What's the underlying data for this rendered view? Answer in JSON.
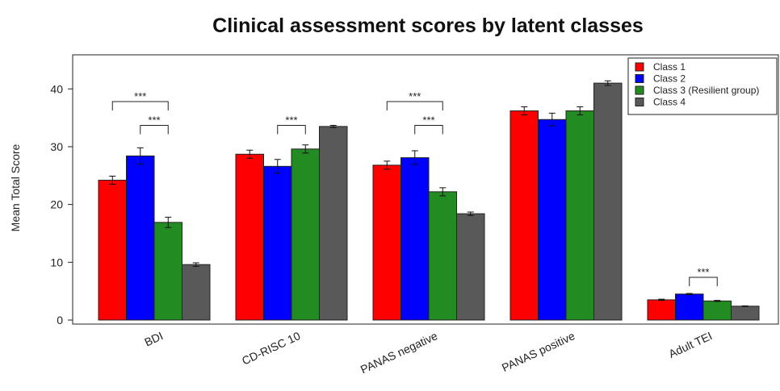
{
  "chart_data": {
    "type": "bar",
    "title": "Clinical assessment scores by latent classes",
    "y_label": "Mean Total Score",
    "categories": [
      "BDI",
      "CD-RISC 10",
      "PANAS negative",
      "PANAS positive",
      "Adult TEI"
    ],
    "series": [
      {
        "name": "Class 1",
        "color": "#ff0000",
        "values": [
          24.2,
          28.7,
          26.8,
          36.2,
          3.5
        ],
        "errors": [
          0.7,
          0.7,
          0.7,
          0.7,
          0.1
        ]
      },
      {
        "name": "Class 2",
        "color": "#0000ff",
        "values": [
          28.4,
          26.6,
          28.1,
          34.7,
          4.5
        ],
        "errors": [
          1.4,
          1.2,
          1.2,
          1.1,
          0.1
        ]
      },
      {
        "name": "Class 3 (Resilient group)",
        "color": "#228b22",
        "values": [
          16.9,
          29.6,
          22.2,
          36.2,
          3.3
        ],
        "errors": [
          0.9,
          0.7,
          0.7,
          0.7,
          0.1
        ]
      },
      {
        "name": "Class 4",
        "color": "#595959",
        "values": [
          9.6,
          33.5,
          18.4,
          41.0,
          2.4
        ],
        "errors": [
          0.3,
          0.2,
          0.3,
          0.4,
          0.05
        ]
      }
    ],
    "significance": [
      {
        "category": "BDI",
        "between": [
          "Class 1",
          "Class 3 (Resilient group)"
        ],
        "y": 37.8,
        "label": "***"
      },
      {
        "category": "BDI",
        "between": [
          "Class 2",
          "Class 3 (Resilient group)"
        ],
        "y": 33.7,
        "label": "***"
      },
      {
        "category": "CD-RISC 10",
        "between": [
          "Class 2",
          "Class 3 (Resilient group)"
        ],
        "y": 33.7,
        "label": "***"
      },
      {
        "category": "PANAS negative",
        "between": [
          "Class 1",
          "Class 3 (Resilient group)"
        ],
        "y": 37.8,
        "label": "***"
      },
      {
        "category": "PANAS negative",
        "between": [
          "Class 2",
          "Class 3 (Resilient group)"
        ],
        "y": 33.7,
        "label": "***"
      },
      {
        "category": "Adult TEI",
        "between": [
          "Class 2",
          "Class 3 (Resilient group)"
        ],
        "y": 7.4,
        "label": "***"
      }
    ],
    "ylim": [
      -0.7,
      45.9
    ],
    "yticks": [
      0,
      10,
      20,
      30,
      40
    ],
    "legend": "topright"
  }
}
